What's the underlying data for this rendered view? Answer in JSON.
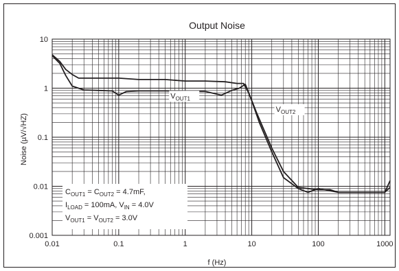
{
  "chart_data": {
    "type": "line",
    "title": "Output Noise",
    "xlabel": "f (Hz)",
    "ylabel": "Noise (µV/√HZ)",
    "x_scale": "log",
    "y_scale": "log",
    "xlim": [
      0.01,
      1200
    ],
    "ylim": [
      0.001,
      10
    ],
    "x_ticks": [
      0.01,
      0.1,
      1,
      10,
      100,
      1000
    ],
    "x_tick_labels": [
      "0.01",
      "0.1",
      "1",
      "10",
      "100",
      "1000"
    ],
    "y_ticks": [
      0.001,
      0.01,
      0.1,
      1,
      10
    ],
    "y_tick_labels": [
      "0.001",
      "0.01",
      "0.1",
      "1",
      "10"
    ],
    "grid": true,
    "colors": {
      "line": "#231f20",
      "grid": "#231f20",
      "background": "#ffffff"
    },
    "series": [
      {
        "name": "VOUT1",
        "label_main": "V",
        "label_sub": "OUT1",
        "x": [
          0.01,
          0.013,
          0.016,
          0.02,
          0.03,
          0.05,
          0.08,
          0.1,
          0.13,
          0.2,
          0.5,
          1,
          2,
          3.5,
          5,
          6.5,
          8,
          10,
          13,
          20,
          30,
          50,
          70,
          100,
          200,
          500,
          1000,
          1200
        ],
        "y": [
          4.6,
          3.2,
          1.8,
          1.1,
          0.92,
          0.9,
          0.88,
          0.72,
          0.85,
          0.88,
          0.88,
          0.86,
          0.86,
          0.72,
          0.9,
          1.0,
          1.2,
          0.55,
          0.2,
          0.05,
          0.015,
          0.009,
          0.0075,
          0.009,
          0.0075,
          0.0075,
          0.0075,
          0.013
        ]
      },
      {
        "name": "VOUT2",
        "label_main": "V",
        "label_sub": "OUT2",
        "x": [
          0.01,
          0.013,
          0.016,
          0.02,
          0.025,
          0.05,
          0.1,
          0.2,
          0.5,
          1,
          2,
          4,
          6,
          7.5,
          9,
          12,
          20,
          30,
          50,
          70,
          100,
          150,
          200,
          500,
          1000,
          1200
        ],
        "y": [
          4.8,
          3.5,
          2.4,
          1.9,
          1.6,
          1.6,
          1.6,
          1.5,
          1.5,
          1.4,
          1.4,
          1.35,
          1.25,
          1.25,
          0.8,
          0.3,
          0.06,
          0.02,
          0.0095,
          0.009,
          0.0085,
          0.0085,
          0.0075,
          0.0075,
          0.0075,
          0.0095
        ]
      }
    ],
    "annotation_lines": [
      {
        "parts": [
          [
            "C",
            ""
          ],
          [
            "OUT1",
            "sub"
          ],
          [
            " = C",
            ""
          ],
          [
            "OUT2",
            "sub"
          ],
          [
            " = 4.7mF,",
            ""
          ]
        ]
      },
      {
        "parts": [
          [
            "I",
            ""
          ],
          [
            "LOAD",
            "sub"
          ],
          [
            " = 100mA, V",
            ""
          ],
          [
            "IN",
            "sub"
          ],
          [
            " = 4.0V",
            ""
          ]
        ]
      },
      {
        "parts": [
          [
            "V",
            ""
          ],
          [
            "OUT1",
            "sub"
          ],
          [
            " = V",
            ""
          ],
          [
            "OUT2",
            "sub"
          ],
          [
            " = 3.0V",
            ""
          ]
        ]
      }
    ]
  }
}
